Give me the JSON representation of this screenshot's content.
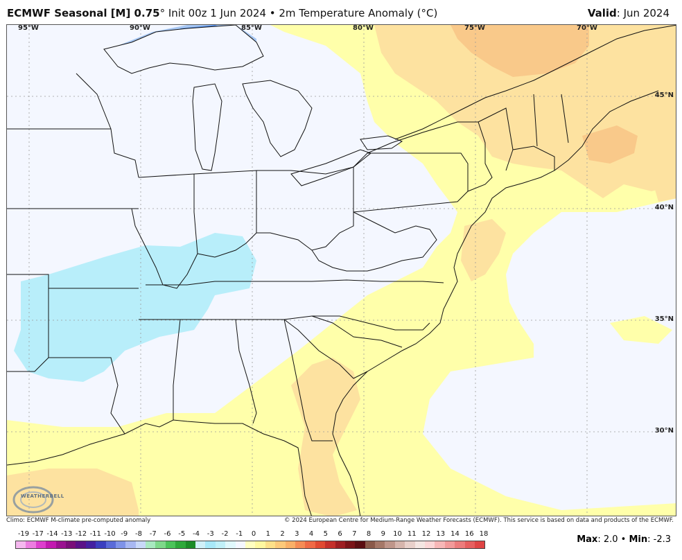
{
  "header": {
    "title_bold": "ECMWF Seasonal [M] 0.75",
    "title_rest": "° Init 00z 1 Jun 2024 • 2m Temperature Anomaly (°C)",
    "valid_label": "Valid",
    "valid_value": ": Jun 2024"
  },
  "map": {
    "longitudes": [
      "95°W",
      "90°W",
      "85°W",
      "80°W",
      "75°W",
      "70°W"
    ],
    "latitudes": [
      "45°N",
      "40°N",
      "35°N",
      "30°N"
    ]
  },
  "footer": {
    "climo_note": "Climo: ECMWF M-climate pre-computed anomaly",
    "copyright": "© 2024 European Centre for Medium-Range Weather Forecasts (ECMWF). This service is based on data and products of the ECMWF.",
    "logo_text": "WEATHERBELL",
    "max_label": "Max",
    "max_value": ": 2.0 • ",
    "min_label": "Min",
    "min_value": ": -2.3"
  },
  "colorbar": {
    "labels": [
      "-19",
      "-17",
      "-14",
      "-13",
      "-12",
      "-11",
      "-10",
      "-9",
      "-8",
      "-7",
      "-6",
      "-5",
      "-4",
      "-3",
      "-2",
      "-1",
      "0",
      "1",
      "2",
      "3",
      "4",
      "5",
      "6",
      "7",
      "8",
      "9",
      "10",
      "11",
      "12",
      "13",
      "14",
      "16",
      "18"
    ],
    "colors": [
      "#f5b8ef",
      "#ec7de0",
      "#dd3fcd",
      "#c21ab0",
      "#9a1290",
      "#7a0f78",
      "#5b1287",
      "#4420a0",
      "#3b3fbf",
      "#5a6bd8",
      "#7f93e8",
      "#a8b8f2",
      "#c8d8f8",
      "#a8e8c0",
      "#7ed88a",
      "#4cc35a",
      "#2ea83a",
      "#1b8b27",
      "#d0f0f8",
      "#a8e8f8",
      "#c0f0f8",
      "#e0f8fc",
      "#f4f7ff",
      "#ffffc0",
      "#fff8a0",
      "#fde089",
      "#fcc97a",
      "#f9b068",
      "#f58c55",
      "#ef6a45",
      "#e04a32",
      "#c4302b",
      "#9d1e22",
      "#7a1418",
      "#5a0e12",
      "#8a5a4a",
      "#a57868",
      "#bf968a",
      "#d6b5ac",
      "#e8d0ca",
      "#f4e6e2",
      "#fbd6d6",
      "#f7b7b7",
      "#f29a9a",
      "#ec7c7c",
      "#e65f5f",
      "#df4444"
    ]
  },
  "legend_colors": {
    "land_neutral": "#f4f7ff",
    "cool_anomaly": "#b8eefa",
    "cold_anomaly": "#4f8ae6",
    "warm_light": "#ffffaa",
    "warm_mid": "#fde2a0",
    "warm_strong": "#f9c98a"
  }
}
